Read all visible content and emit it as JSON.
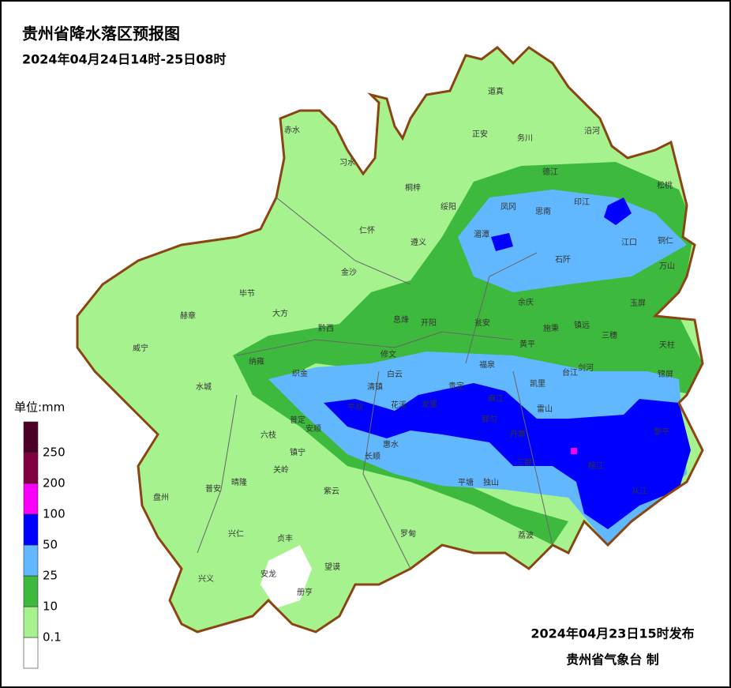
{
  "header": {
    "title": "贵州省降水落区预报图",
    "period": "2024年04月24日14时-25日08时"
  },
  "legend": {
    "unit": "单位:mm",
    "colors": [
      "#ffffff",
      "#a6f28f",
      "#3dba3d",
      "#61b8ff",
      "#0000ff",
      "#fa00fa",
      "#800040",
      "#4d0026"
    ],
    "ticks": [
      0.1,
      10,
      25,
      50,
      100,
      200,
      250
    ]
  },
  "places": [
    "道真",
    "赤水",
    "正安",
    "务川",
    "沿河",
    "习水",
    "桐梓",
    "德江",
    "松桃",
    "绥阳",
    "凤冈",
    "印江",
    "思南",
    "仁怀",
    "湄潭",
    "遵义",
    "江口",
    "铜仁",
    "石阡",
    "万山",
    "金沙",
    "毕节",
    "大方",
    "余庆",
    "玉屏",
    "赫章",
    "黔西",
    "息烽",
    "开阳",
    "瓮安",
    "施秉",
    "镇远",
    "三穗",
    "威宁",
    "黄平",
    "天柱",
    "修文",
    "纳雍",
    "织金",
    "白云",
    "清镇",
    "福泉",
    "台江",
    "剑河",
    "锦屏",
    "凯里",
    "贵定",
    "水城",
    "平坝",
    "花溪",
    "龙里",
    "麻江",
    "雷山",
    "普定",
    "安顺",
    "都匀",
    "黎平",
    "六枝",
    "丹寨",
    "惠水",
    "镇宁",
    "长顺",
    "三都",
    "榕江",
    "关岭",
    "从江",
    "普安",
    "晴隆",
    "紫云",
    "平塘",
    "独山",
    "盘州",
    "荔波",
    "兴仁",
    "贞丰",
    "罗甸",
    "望谟",
    "兴义",
    "安龙",
    "册亨"
  ],
  "footer": {
    "issued": "2024年04月23日15时发布",
    "issuer": "贵州省气象台 制"
  }
}
